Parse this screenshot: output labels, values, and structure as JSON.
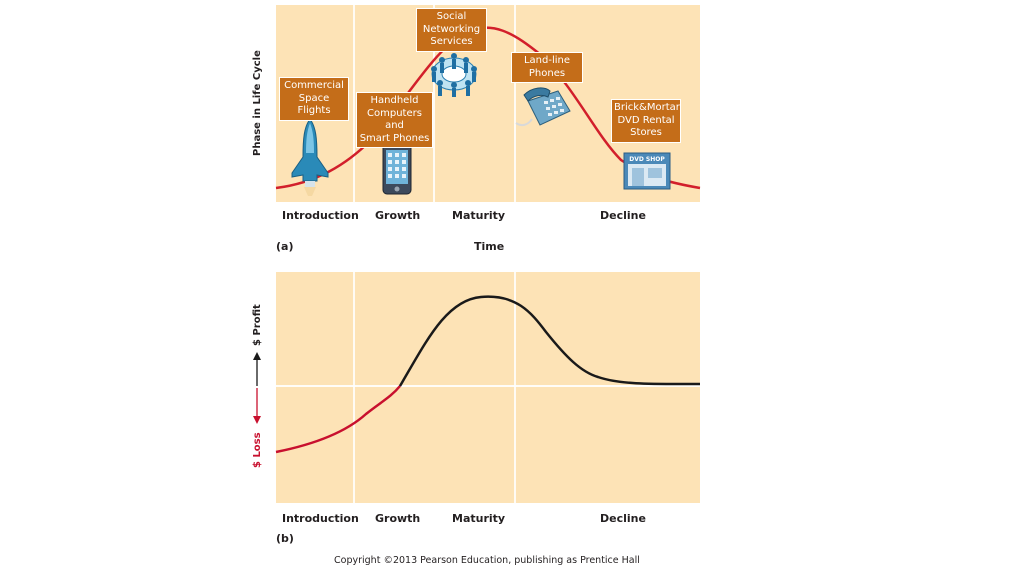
{
  "panel_a": {
    "part_label": "(a)",
    "y_axis_title": "Phase in Life Cycle",
    "x_axis_title": "Time",
    "phases": [
      "Introduction",
      "Growth",
      "Maturity",
      "Decline"
    ],
    "examples": [
      {
        "text": "Commercial\nSpace Flights",
        "icon": "space-shuttle-icon"
      },
      {
        "text": "Handheld\nComputers and\nSmart Phones",
        "icon": "smartphone-icon"
      },
      {
        "text": "Social\nNetworking\nServices",
        "icon": "people-network-icon"
      },
      {
        "text": "Land-line\nPhones",
        "icon": "desk-phone-icon"
      },
      {
        "text": "Brick&Mortar\nDVD Rental\nStores",
        "icon": "dvd-shop-icon",
        "sign": "DVD SHOP"
      }
    ],
    "curve_color": "#d21f2b"
  },
  "panel_b": {
    "part_label": "(b)",
    "profit_label": "$ Profit",
    "loss_label": "$ Loss",
    "phases": [
      "Introduction",
      "Growth",
      "Maturity",
      "Decline"
    ],
    "loss_color": "#c8102e",
    "profit_color": "#1a1a1a"
  },
  "colors": {
    "panel_bg": "#fde3b6",
    "box_bg": "#c46d19"
  },
  "copyright": "Copyright ©2013 Pearson Education, publishing as Prentice Hall"
}
